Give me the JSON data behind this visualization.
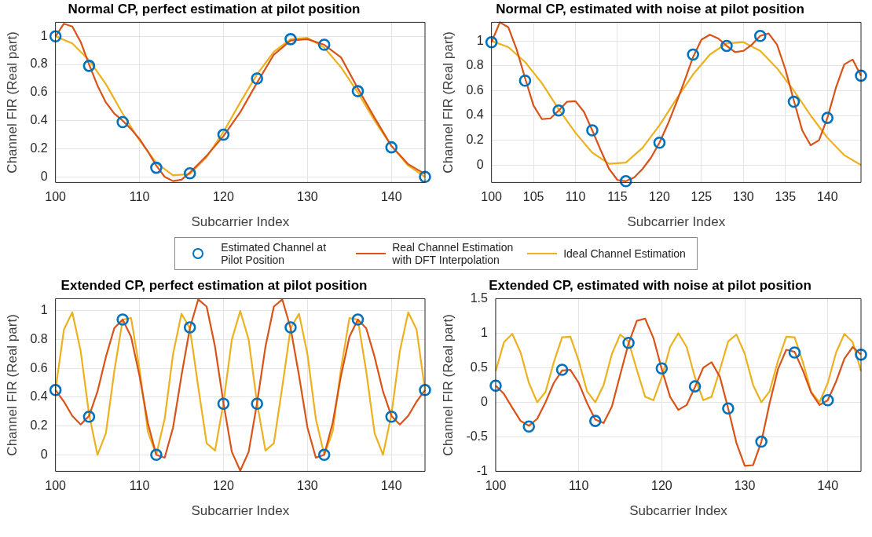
{
  "chart_data": [
    {
      "type": "line",
      "title": "Normal CP, perfect estimation at pilot position",
      "xlabel": "Subcarrier Index",
      "ylabel": "Channel FIR (Real part)",
      "xlim": [
        100,
        144
      ],
      "xticks": [
        100,
        110,
        120,
        130,
        140
      ],
      "ylim": [
        -0.04,
        1.1
      ],
      "yticks": [
        0,
        0.2,
        0.4,
        0.6,
        0.8,
        1
      ],
      "grid": true,
      "legend": "bottom",
      "series": [
        {
          "name": "Estimated Channel at Pilot Position",
          "type": "scatter",
          "marker": "circle",
          "color": "#0072bd",
          "x": [
            100,
            104,
            108,
            112,
            116,
            120,
            124,
            128,
            132,
            136,
            140,
            144
          ],
          "values": [
            1.0,
            0.79,
            0.39,
            0.065,
            0.025,
            0.3,
            0.7,
            0.98,
            0.94,
            0.61,
            0.21,
            0.0
          ]
        },
        {
          "name": "Real Channel Estimation with DFT Interpolation",
          "type": "line",
          "marker": "none",
          "color": "#d95319",
          "x": [
            100,
            101,
            102,
            103,
            104,
            105,
            106,
            107,
            108,
            109,
            110,
            111,
            112,
            113,
            114,
            115,
            116,
            118,
            120,
            122,
            124,
            126,
            128,
            130,
            132,
            134,
            136,
            138,
            140,
            142,
            144
          ],
          "values": [
            1.0,
            1.09,
            1.07,
            0.96,
            0.8,
            0.65,
            0.53,
            0.45,
            0.4,
            0.34,
            0.27,
            0.18,
            0.08,
            0.0,
            -0.03,
            -0.02,
            0.03,
            0.15,
            0.29,
            0.46,
            0.67,
            0.87,
            0.97,
            0.98,
            0.94,
            0.85,
            0.63,
            0.42,
            0.22,
            0.09,
            0.02
          ]
        },
        {
          "name": "Ideal Channel Estimation",
          "type": "line",
          "marker": "none",
          "color": "#edb120",
          "x": [
            100,
            102,
            104,
            106,
            108,
            110,
            112,
            114,
            116,
            118,
            120,
            122,
            124,
            126,
            128,
            130,
            132,
            134,
            136,
            138,
            140,
            142,
            144
          ],
          "values": [
            1.0,
            0.95,
            0.83,
            0.66,
            0.45,
            0.26,
            0.1,
            0.01,
            0.02,
            0.14,
            0.32,
            0.53,
            0.73,
            0.89,
            0.98,
            0.99,
            0.92,
            0.78,
            0.6,
            0.4,
            0.22,
            0.08,
            0.0
          ]
        }
      ]
    },
    {
      "type": "line",
      "title": "Normal CP, estimated with noise at pilot position",
      "xlabel": "Subcarrier Index",
      "ylabel": "Channel FIR (Real part)",
      "xlim": [
        100,
        144
      ],
      "xticks": [
        100,
        105,
        110,
        115,
        120,
        125,
        130,
        135,
        140
      ],
      "ylim": [
        -0.14,
        1.15
      ],
      "yticks": [
        0,
        0.2,
        0.4,
        0.6,
        0.8,
        1
      ],
      "grid": true,
      "series": [
        {
          "type": "scatter",
          "marker": "circle",
          "color": "#0072bd",
          "x": [
            100,
            104,
            108,
            112,
            116,
            120,
            124,
            128,
            132,
            136,
            140,
            144
          ],
          "values": [
            0.99,
            0.68,
            0.44,
            0.28,
            -0.13,
            0.18,
            0.89,
            0.96,
            1.04,
            0.51,
            0.38,
            0.72
          ]
        },
        {
          "type": "line",
          "marker": "none",
          "color": "#d95319",
          "x": [
            100,
            101,
            102,
            103,
            104,
            105,
            106,
            107,
            108,
            109,
            110,
            111,
            112,
            113,
            114,
            115,
            116,
            117,
            118,
            119,
            120,
            121,
            122,
            123,
            124,
            125,
            126,
            127,
            128,
            129,
            130,
            131,
            132,
            133,
            134,
            135,
            136,
            137,
            138,
            139,
            140,
            141,
            142,
            143,
            144
          ],
          "values": [
            0.99,
            1.15,
            1.11,
            0.93,
            0.7,
            0.48,
            0.37,
            0.375,
            0.44,
            0.51,
            0.515,
            0.43,
            0.28,
            0.12,
            -0.03,
            -0.12,
            -0.13,
            -0.1,
            -0.03,
            0.06,
            0.18,
            0.33,
            0.5,
            0.68,
            0.87,
            1.01,
            1.05,
            1.02,
            0.96,
            0.91,
            0.92,
            0.97,
            1.04,
            1.06,
            0.97,
            0.77,
            0.52,
            0.28,
            0.16,
            0.2,
            0.38,
            0.62,
            0.81,
            0.85,
            0.72
          ]
        },
        {
          "type": "line",
          "marker": "none",
          "color": "#edb120",
          "x": [
            100,
            102,
            104,
            106,
            108,
            110,
            112,
            114,
            116,
            118,
            120,
            122,
            124,
            126,
            128,
            130,
            132,
            134,
            136,
            138,
            140,
            142,
            144
          ],
          "values": [
            1.0,
            0.95,
            0.83,
            0.66,
            0.45,
            0.26,
            0.1,
            0.01,
            0.02,
            0.14,
            0.32,
            0.53,
            0.73,
            0.89,
            0.98,
            0.99,
            0.92,
            0.78,
            0.6,
            0.4,
            0.22,
            0.08,
            0.0
          ]
        }
      ]
    },
    {
      "type": "line",
      "title": "Extended CP, perfect estimation at pilot position",
      "xlabel": "Subcarrier Index",
      "ylabel": "Channel FIR (Real part)",
      "xlim": [
        100,
        144
      ],
      "xticks": [
        100,
        110,
        120,
        130,
        140
      ],
      "ylim": [
        -0.115,
        1.085
      ],
      "yticks": [
        0,
        0.2,
        0.4,
        0.6,
        0.8,
        1
      ],
      "grid": true,
      "series": [
        {
          "type": "scatter",
          "marker": "circle",
          "color": "#0072bd",
          "x": [
            100,
            104,
            108,
            112,
            116,
            120,
            124,
            128,
            132,
            136,
            140,
            144
          ],
          "values": [
            0.45,
            0.265,
            0.94,
            0.0,
            0.885,
            0.355,
            0.355,
            0.885,
            0.0,
            0.94,
            0.265,
            0.45
          ]
        },
        {
          "type": "line",
          "marker": "none",
          "color": "#d95319",
          "x": [
            100,
            101,
            102,
            103,
            104,
            105,
            106,
            107,
            108,
            109,
            110,
            111,
            112,
            113,
            114,
            115,
            116,
            117,
            118,
            119,
            120,
            121,
            122,
            123,
            124,
            125,
            126,
            127,
            128,
            129,
            130,
            131,
            132,
            133,
            134,
            135,
            136,
            137,
            138,
            139,
            140,
            141,
            142,
            143,
            144
          ],
          "values": [
            0.45,
            0.37,
            0.27,
            0.21,
            0.27,
            0.44,
            0.68,
            0.88,
            0.94,
            0.82,
            0.55,
            0.22,
            0.0,
            -0.02,
            0.19,
            0.55,
            0.88,
            1.08,
            1.03,
            0.75,
            0.36,
            0.02,
            -0.11,
            0.02,
            0.36,
            0.75,
            1.03,
            1.08,
            0.88,
            0.55,
            0.19,
            -0.02,
            0.0,
            0.22,
            0.55,
            0.82,
            0.94,
            0.88,
            0.68,
            0.44,
            0.27,
            0.21,
            0.27,
            0.37,
            0.45
          ]
        },
        {
          "type": "line",
          "marker": "none",
          "color": "#edb120",
          "x": [
            100,
            101,
            102,
            103,
            104,
            105,
            106,
            107,
            108,
            109,
            110,
            111,
            112,
            113,
            114,
            115,
            116,
            117,
            118,
            119,
            120,
            121,
            122,
            123,
            124,
            125,
            126,
            127,
            128,
            129,
            130,
            131,
            132,
            133,
            134,
            135,
            136,
            137,
            138,
            139,
            140,
            141,
            142,
            143,
            144
          ],
          "values": [
            0.45,
            0.87,
            0.99,
            0.72,
            0.28,
            0.0,
            0.15,
            0.58,
            0.94,
            0.95,
            0.6,
            0.16,
            0.0,
            0.25,
            0.7,
            0.98,
            0.88,
            0.47,
            0.08,
            0.03,
            0.36,
            0.8,
            1.0,
            0.8,
            0.36,
            0.03,
            0.08,
            0.47,
            0.88,
            0.98,
            0.7,
            0.25,
            0.0,
            0.16,
            0.6,
            0.95,
            0.94,
            0.58,
            0.15,
            0.0,
            0.28,
            0.72,
            0.99,
            0.87,
            0.45
          ]
        }
      ]
    },
    {
      "type": "line",
      "title": "Extended CP, estimated with noise at pilot position",
      "xlabel": "Subcarrier Index",
      "ylabel": "Channel FIR (Real part)",
      "xlim": [
        100,
        144
      ],
      "xticks": [
        100,
        110,
        120,
        130,
        140
      ],
      "ylim": [
        -1,
        1.5
      ],
      "yticks": [
        -1,
        -0.5,
        0,
        0.5,
        1,
        1.5
      ],
      "grid": true,
      "series": [
        {
          "type": "scatter",
          "marker": "circle",
          "color": "#0072bd",
          "x": [
            100,
            104,
            108,
            112,
            116,
            120,
            124,
            128,
            132,
            136,
            140,
            144
          ],
          "values": [
            0.24,
            -0.35,
            0.47,
            -0.27,
            0.86,
            0.49,
            0.23,
            -0.09,
            -0.57,
            0.72,
            0.03,
            0.69
          ]
        },
        {
          "type": "line",
          "marker": "none",
          "color": "#d95319",
          "x": [
            100,
            101,
            102,
            103,
            104,
            105,
            106,
            107,
            108,
            109,
            110,
            111,
            112,
            113,
            114,
            115,
            116,
            117,
            118,
            119,
            120,
            121,
            122,
            123,
            124,
            125,
            126,
            127,
            128,
            129,
            130,
            131,
            132,
            133,
            134,
            135,
            136,
            137,
            138,
            139,
            140,
            141,
            142,
            143,
            144
          ],
          "values": [
            0.24,
            0.12,
            -0.08,
            -0.27,
            -0.34,
            -0.24,
            0.0,
            0.28,
            0.46,
            0.47,
            0.28,
            -0.01,
            -0.25,
            -0.3,
            -0.06,
            0.4,
            0.85,
            1.18,
            1.21,
            0.93,
            0.48,
            0.08,
            -0.11,
            -0.04,
            0.22,
            0.5,
            0.58,
            0.37,
            -0.09,
            -0.59,
            -0.92,
            -0.91,
            -0.57,
            -0.01,
            0.48,
            0.76,
            0.73,
            0.46,
            0.14,
            -0.04,
            0.03,
            0.3,
            0.63,
            0.8,
            0.69
          ]
        },
        {
          "type": "line",
          "marker": "none",
          "color": "#edb120",
          "x": [
            100,
            101,
            102,
            103,
            104,
            105,
            106,
            107,
            108,
            109,
            110,
            111,
            112,
            113,
            114,
            115,
            116,
            117,
            118,
            119,
            120,
            121,
            122,
            123,
            124,
            125,
            126,
            127,
            128,
            129,
            130,
            131,
            132,
            133,
            134,
            135,
            136,
            137,
            138,
            139,
            140,
            141,
            142,
            143,
            144
          ],
          "values": [
            0.45,
            0.87,
            0.99,
            0.72,
            0.28,
            0.0,
            0.15,
            0.58,
            0.94,
            0.95,
            0.6,
            0.16,
            0.0,
            0.25,
            0.7,
            0.98,
            0.88,
            0.47,
            0.08,
            0.03,
            0.36,
            0.8,
            1.0,
            0.8,
            0.36,
            0.03,
            0.08,
            0.47,
            0.88,
            0.98,
            0.7,
            0.25,
            0.0,
            0.16,
            0.6,
            0.95,
            0.94,
            0.58,
            0.15,
            0.0,
            0.28,
            0.72,
            0.99,
            0.87,
            0.45
          ]
        }
      ]
    }
  ]
}
